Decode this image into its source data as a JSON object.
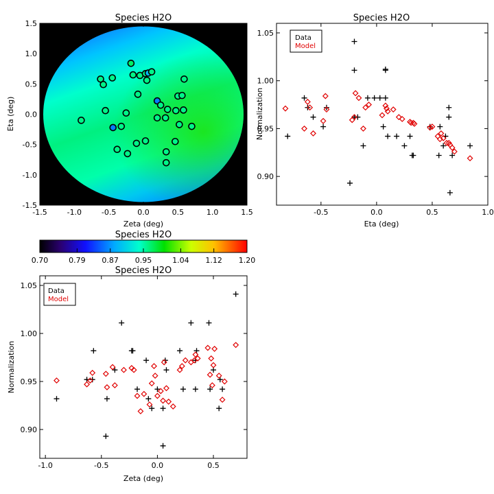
{
  "panels": {
    "map": {
      "title": "Species H2O",
      "xlabel": "Zeta (deg)",
      "ylabel": "Eta (deg)",
      "xticks": [
        "-1.5",
        "-1.0",
        "-0.5",
        "0.0",
        "0.5",
        "1.0",
        "1.5"
      ],
      "yticks": [
        "-1.5",
        "-1.0",
        "-0.5",
        "0.0",
        "0.5",
        "1.0",
        "1.5"
      ]
    },
    "colorbar": {
      "title": "Species H2O",
      "ticks": [
        "0.70",
        "0.79",
        "0.87",
        "0.95",
        "1.04",
        "1.12",
        "1.20"
      ]
    },
    "eta_scatter": {
      "title": "Species H2O",
      "xlabel": "Eta (deg)",
      "ylabel": "Normalization",
      "xticks": [
        "-0.5",
        "0.0",
        "0.5",
        "1.0"
      ],
      "yticks": [
        "0.90",
        "0.95",
        "1.00",
        "1.05"
      ],
      "legend": {
        "data": "Data",
        "model": "Model"
      }
    },
    "zeta_scatter": {
      "title": "Species H2O",
      "xlabel": "Zeta (deg)",
      "ylabel": "Normalization",
      "xticks": [
        "-1.0",
        "-0.5",
        "0.0",
        "0.5"
      ],
      "yticks": [
        "0.90",
        "0.95",
        "1.00",
        "1.05"
      ],
      "legend": {
        "data": "Data",
        "model": "Model"
      }
    }
  },
  "colors": {
    "data": "#000000",
    "model": "#e00000",
    "background": "#000000"
  },
  "chart_data": [
    {
      "type": "heatmap",
      "title": "Species H2O",
      "xlabel": "Zeta (deg)",
      "ylabel": "Eta (deg)",
      "xlim": [
        -1.5,
        1.5
      ],
      "ylim": [
        -1.5,
        1.5
      ],
      "colormap_range": [
        0.7,
        1.2
      ],
      "field_radius_deg": 1.45,
      "points": [
        {
          "zeta": -0.18,
          "eta": 0.84,
          "value": 0.97
        },
        {
          "zeta": -0.15,
          "eta": 0.65,
          "value": 0.96
        },
        {
          "zeta": -0.05,
          "eta": 0.64,
          "value": 0.96
        },
        {
          "zeta": 0.03,
          "eta": 0.67,
          "value": 0.96
        },
        {
          "zeta": 0.07,
          "eta": 0.68,
          "value": 0.89
        },
        {
          "zeta": 0.12,
          "eta": 0.7,
          "value": 0.96
        },
        {
          "zeta": 0.05,
          "eta": 0.56,
          "value": 0.96
        },
        {
          "zeta": -0.62,
          "eta": 0.58,
          "value": 0.96
        },
        {
          "zeta": -0.58,
          "eta": 0.49,
          "value": 0.96
        },
        {
          "zeta": -0.45,
          "eta": 0.6,
          "value": 0.96
        },
        {
          "zeta": 0.59,
          "eta": 0.58,
          "value": 0.96
        },
        {
          "zeta": 0.5,
          "eta": 0.3,
          "value": 0.96
        },
        {
          "zeta": 0.56,
          "eta": 0.31,
          "value": 0.96
        },
        {
          "zeta": -0.08,
          "eta": 0.33,
          "value": 0.96
        },
        {
          "zeta": 0.2,
          "eta": 0.22,
          "value": 0.86
        },
        {
          "zeta": 0.25,
          "eta": 0.15,
          "value": 0.96
        },
        {
          "zeta": -0.55,
          "eta": 0.06,
          "value": 0.96
        },
        {
          "zeta": -0.25,
          "eta": 0.02,
          "value": 0.96
        },
        {
          "zeta": 0.35,
          "eta": 0.08,
          "value": 0.96
        },
        {
          "zeta": 0.47,
          "eta": 0.06,
          "value": 0.96
        },
        {
          "zeta": 0.58,
          "eta": 0.07,
          "value": 0.96
        },
        {
          "zeta": 0.32,
          "eta": -0.06,
          "value": 0.96
        },
        {
          "zeta": 0.2,
          "eta": -0.06,
          "value": 0.96
        },
        {
          "zeta": -0.9,
          "eta": -0.1,
          "value": 0.96
        },
        {
          "zeta": -0.44,
          "eta": -0.22,
          "value": 0.86
        },
        {
          "zeta": -0.32,
          "eta": -0.2,
          "value": 0.96
        },
        {
          "zeta": 0.52,
          "eta": -0.17,
          "value": 0.96
        },
        {
          "zeta": 0.7,
          "eta": -0.2,
          "value": 0.96
        },
        {
          "zeta": -0.1,
          "eta": -0.48,
          "value": 0.96
        },
        {
          "zeta": 0.03,
          "eta": -0.44,
          "value": 0.96
        },
        {
          "zeta": 0.46,
          "eta": -0.45,
          "value": 0.96
        },
        {
          "zeta": -0.38,
          "eta": -0.58,
          "value": 0.96
        },
        {
          "zeta": -0.23,
          "eta": -0.65,
          "value": 0.96
        },
        {
          "zeta": 0.33,
          "eta": -0.62,
          "value": 0.96
        },
        {
          "zeta": 0.33,
          "eta": -0.8,
          "value": 0.96
        }
      ]
    },
    {
      "type": "scatter",
      "title": "Species H2O",
      "xlabel": "Eta (deg)",
      "ylabel": "Normalization",
      "xlim": [
        -0.9,
        1.0
      ],
      "ylim": [
        0.87,
        1.06
      ],
      "legend_position": "top-left",
      "series": [
        {
          "name": "Data",
          "marker": "plus",
          "x": [
            -0.8,
            -0.65,
            -0.62,
            -0.57,
            -0.48,
            -0.45,
            -0.24,
            -0.2,
            -0.2,
            -0.2,
            -0.17,
            -0.12,
            -0.08,
            -0.02,
            0.03,
            0.06,
            0.08,
            0.08,
            0.08,
            0.1,
            0.18,
            0.25,
            0.3,
            0.32,
            0.33,
            0.48,
            0.56,
            0.57,
            0.6,
            0.62,
            0.65,
            0.65,
            0.66,
            0.68,
            0.84
          ],
          "y": [
            0.942,
            0.982,
            0.972,
            0.962,
            0.952,
            0.972,
            0.893,
            1.041,
            1.011,
            0.962,
            0.962,
            0.932,
            0.982,
            0.982,
            0.982,
            0.952,
            1.011,
            1.012,
            0.982,
            0.942,
            0.942,
            0.932,
            0.942,
            0.922,
            0.922,
            0.952,
            0.922,
            0.952,
            0.932,
            0.942,
            0.972,
            0.962,
            0.883,
            0.922,
            0.932
          ]
        },
        {
          "name": "Model",
          "marker": "diamond",
          "x": [
            -0.82,
            -0.65,
            -0.62,
            -0.6,
            -0.57,
            -0.48,
            -0.46,
            -0.45,
            -0.22,
            -0.2,
            -0.19,
            -0.16,
            -0.12,
            -0.1,
            -0.07,
            0.05,
            0.08,
            0.09,
            0.1,
            0.15,
            0.2,
            0.23,
            0.3,
            0.31,
            0.33,
            0.34,
            0.48,
            0.5,
            0.55,
            0.57,
            0.58,
            0.6,
            0.63,
            0.65,
            0.66,
            0.68,
            0.7,
            0.84
          ],
          "y": [
            0.971,
            0.95,
            0.978,
            0.972,
            0.945,
            0.958,
            0.984,
            0.97,
            0.959,
            0.962,
            0.987,
            0.982,
            0.95,
            0.972,
            0.975,
            0.964,
            0.974,
            0.971,
            0.968,
            0.97,
            0.962,
            0.96,
            0.957,
            0.956,
            0.956,
            0.955,
            0.951,
            0.952,
            0.942,
            0.939,
            0.945,
            0.94,
            0.935,
            0.935,
            0.933,
            0.93,
            0.926,
            0.919
          ]
        }
      ]
    },
    {
      "type": "scatter",
      "title": "Species H2O",
      "xlabel": "Zeta (deg)",
      "ylabel": "Normalization",
      "xlim": [
        -1.05,
        0.8
      ],
      "ylim": [
        0.87,
        1.06
      ],
      "legend_position": "top-left",
      "series": [
        {
          "name": "Data",
          "marker": "plus",
          "x": [
            -0.9,
            -0.63,
            -0.58,
            -0.57,
            -0.46,
            -0.45,
            -0.38,
            -0.32,
            -0.23,
            -0.22,
            -0.18,
            -0.1,
            -0.08,
            -0.05,
            0.0,
            0.05,
            0.05,
            0.07,
            0.08,
            0.2,
            0.23,
            0.3,
            0.34,
            0.34,
            0.35,
            0.46,
            0.47,
            0.5,
            0.55,
            0.56,
            0.58,
            0.7
          ],
          "y": [
            0.932,
            0.952,
            0.952,
            0.982,
            0.893,
            0.932,
            0.962,
            1.011,
            0.982,
            0.982,
            0.942,
            0.972,
            0.932,
            0.922,
            0.942,
            0.883,
            0.922,
            0.972,
            0.962,
            0.982,
            0.942,
            1.011,
            0.942,
            0.972,
            0.982,
            1.011,
            0.942,
            0.962,
            0.922,
            0.952,
            0.942,
            1.041
          ]
        },
        {
          "name": "Model",
          "marker": "diamond",
          "x": [
            -0.9,
            -0.63,
            -0.6,
            -0.58,
            -0.46,
            -0.45,
            -0.4,
            -0.38,
            -0.3,
            -0.23,
            -0.21,
            -0.18,
            -0.15,
            -0.12,
            -0.07,
            -0.05,
            -0.03,
            -0.02,
            0.0,
            0.03,
            0.05,
            0.06,
            0.08,
            0.1,
            0.14,
            0.2,
            0.22,
            0.25,
            0.3,
            0.33,
            0.34,
            0.36,
            0.45,
            0.47,
            0.48,
            0.49,
            0.5,
            0.51,
            0.55,
            0.58,
            0.6,
            0.7
          ],
          "y": [
            0.951,
            0.947,
            0.951,
            0.959,
            0.958,
            0.944,
            0.965,
            0.946,
            0.962,
            0.964,
            0.962,
            0.935,
            0.919,
            0.937,
            0.926,
            0.948,
            0.966,
            0.956,
            0.935,
            0.94,
            0.93,
            0.97,
            0.943,
            0.929,
            0.924,
            0.962,
            0.966,
            0.972,
            0.97,
            0.972,
            0.978,
            0.974,
            0.985,
            0.957,
            0.974,
            0.946,
            0.967,
            0.984,
            0.956,
            0.931,
            0.95,
            0.988
          ]
        }
      ]
    }
  ]
}
